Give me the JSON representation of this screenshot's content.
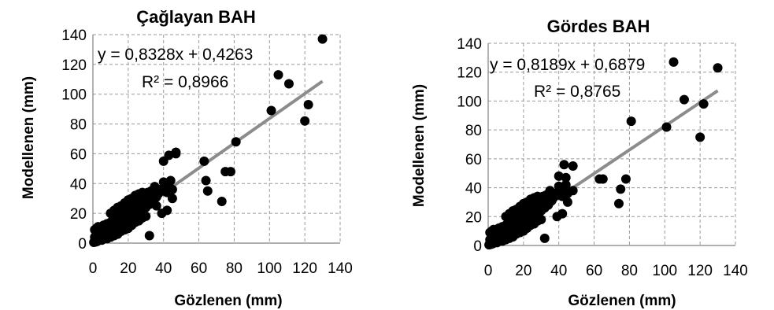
{
  "chart_data": [
    {
      "type": "scatter",
      "title": "Çağlayan BAH",
      "xlabel": "Gözlenen (mm)",
      "ylabel": "Modellenen (mm)",
      "xlim": [
        0,
        140
      ],
      "ylim": [
        0,
        140
      ],
      "xticks": [
        "0",
        "20",
        "40",
        "60",
        "80",
        "100",
        "120",
        "140"
      ],
      "yticks": [
        "0",
        "20",
        "40",
        "60",
        "80",
        "100",
        "120",
        "140"
      ],
      "grid": true,
      "marker_color": "#000000",
      "trendline_color": "#8c8c8c",
      "trendline": {
        "slope": 0.8328,
        "intercept": 0.4263
      },
      "equation": "y = 0,8328x + 0,4263",
      "r2": "R² = 0,8966",
      "points": [
        [
          0.5,
          0.5
        ],
        [
          1,
          1.5
        ],
        [
          1.5,
          0.8
        ],
        [
          2,
          2.5
        ],
        [
          2.5,
          1.2
        ],
        [
          3,
          3
        ],
        [
          3.5,
          2
        ],
        [
          4,
          4.5
        ],
        [
          4.5,
          3
        ],
        [
          5,
          5
        ],
        [
          1,
          4
        ],
        [
          2,
          6
        ],
        [
          3,
          8
        ],
        [
          1,
          9
        ],
        [
          2,
          10
        ],
        [
          3,
          11
        ],
        [
          4,
          7
        ],
        [
          5,
          9
        ],
        [
          6,
          5
        ],
        [
          6,
          12
        ],
        [
          7,
          6
        ],
        [
          7,
          10
        ],
        [
          8,
          7
        ],
        [
          8,
          13
        ],
        [
          9,
          8
        ],
        [
          9,
          11
        ],
        [
          10,
          9
        ],
        [
          10,
          14
        ],
        [
          11,
          10
        ],
        [
          11,
          15
        ],
        [
          12,
          11
        ],
        [
          12,
          8
        ],
        [
          13,
          12
        ],
        [
          13,
          16
        ],
        [
          14,
          10
        ],
        [
          14,
          13
        ],
        [
          15,
          14
        ],
        [
          15,
          18
        ],
        [
          16,
          12
        ],
        [
          16,
          15
        ],
        [
          17,
          16
        ],
        [
          17,
          20
        ],
        [
          18,
          14
        ],
        [
          18,
          17
        ],
        [
          19,
          18
        ],
        [
          19,
          22
        ],
        [
          20,
          16
        ],
        [
          20,
          20
        ],
        [
          21,
          19
        ],
        [
          21,
          24
        ],
        [
          22,
          17
        ],
        [
          22,
          21
        ],
        [
          23,
          20
        ],
        [
          23,
          26
        ],
        [
          24,
          18
        ],
        [
          24,
          22
        ],
        [
          25,
          21
        ],
        [
          25,
          28
        ],
        [
          26,
          20
        ],
        [
          26,
          24
        ],
        [
          27,
          23
        ],
        [
          27,
          30
        ],
        [
          28,
          22
        ],
        [
          28,
          26
        ],
        [
          29,
          25
        ],
        [
          29,
          32
        ],
        [
          30,
          24
        ],
        [
          30,
          28
        ],
        [
          31,
          27
        ],
        [
          31,
          34
        ],
        [
          32,
          26
        ],
        [
          32,
          5
        ],
        [
          33,
          29
        ],
        [
          33,
          35
        ],
        [
          34,
          28
        ],
        [
          34,
          32
        ],
        [
          35,
          30
        ],
        [
          35,
          38
        ],
        [
          36,
          31
        ],
        [
          36,
          25
        ],
        [
          37,
          33
        ],
        [
          38,
          36
        ],
        [
          39,
          20
        ],
        [
          40,
          35
        ],
        [
          40,
          41
        ],
        [
          41,
          37
        ],
        [
          42,
          22
        ],
        [
          42,
          34
        ],
        [
          43,
          39
        ],
        [
          44,
          42
        ],
        [
          45,
          36
        ],
        [
          45,
          30
        ],
        [
          5,
          2
        ],
        [
          6,
          3
        ],
        [
          7,
          4
        ],
        [
          8,
          3
        ],
        [
          9,
          5
        ],
        [
          10,
          4
        ],
        [
          12,
          5
        ],
        [
          14,
          6
        ],
        [
          16,
          8
        ],
        [
          18,
          9
        ],
        [
          20,
          10
        ],
        [
          22,
          12
        ],
        [
          24,
          14
        ],
        [
          26,
          15
        ],
        [
          28,
          17
        ],
        [
          30,
          18
        ],
        [
          10,
          20
        ],
        [
          12,
          22
        ],
        [
          14,
          24
        ],
        [
          16,
          25
        ],
        [
          18,
          27
        ],
        [
          20,
          29
        ],
        [
          22,
          30
        ],
        [
          24,
          32
        ],
        [
          26,
          33
        ],
        [
          28,
          34
        ],
        [
          40,
          55
        ],
        [
          43,
          59
        ],
        [
          47,
          61
        ],
        [
          47,
          60
        ],
        [
          63,
          55
        ],
        [
          64,
          42
        ],
        [
          65,
          35
        ],
        [
          73,
          28
        ],
        [
          75,
          48
        ],
        [
          78,
          48
        ],
        [
          81,
          68
        ],
        [
          101,
          89
        ],
        [
          105,
          113
        ],
        [
          111,
          107
        ],
        [
          120,
          82
        ],
        [
          122,
          93
        ],
        [
          130,
          137
        ]
      ]
    },
    {
      "type": "scatter",
      "title": "Gördes BAH",
      "xlabel": "Gözlenen (mm)",
      "ylabel": "Modellenen (mm)",
      "xlim": [
        0,
        140
      ],
      "ylim": [
        0,
        140
      ],
      "xticks": [
        "0",
        "20",
        "40",
        "60",
        "80",
        "100",
        "120",
        "140"
      ],
      "yticks": [
        "0",
        "20",
        "40",
        "60",
        "80",
        "100",
        "120",
        "140"
      ],
      "grid": true,
      "marker_color": "#000000",
      "trendline_color": "#8c8c8c",
      "trendline": {
        "slope": 0.8189,
        "intercept": 0.6879
      },
      "equation": "y = 0,8189x + 0,6879",
      "r2": "R² = 0,8765",
      "points": [
        [
          0.5,
          0.5
        ],
        [
          1,
          1.5
        ],
        [
          1.5,
          0.8
        ],
        [
          2,
          2.5
        ],
        [
          2.5,
          1.2
        ],
        [
          3,
          3
        ],
        [
          3.5,
          2
        ],
        [
          4,
          4.5
        ],
        [
          4.5,
          3
        ],
        [
          5,
          5
        ],
        [
          1,
          4
        ],
        [
          2,
          6
        ],
        [
          3,
          8
        ],
        [
          1,
          9
        ],
        [
          2,
          10
        ],
        [
          3,
          11
        ],
        [
          4,
          7
        ],
        [
          5,
          9
        ],
        [
          6,
          5
        ],
        [
          6,
          12
        ],
        [
          7,
          6
        ],
        [
          7,
          10
        ],
        [
          8,
          7
        ],
        [
          8,
          13
        ],
        [
          9,
          8
        ],
        [
          9,
          11
        ],
        [
          10,
          9
        ],
        [
          10,
          14
        ],
        [
          11,
          10
        ],
        [
          11,
          15
        ],
        [
          12,
          11
        ],
        [
          12,
          8
        ],
        [
          13,
          12
        ],
        [
          13,
          16
        ],
        [
          14,
          10
        ],
        [
          14,
          13
        ],
        [
          15,
          14
        ],
        [
          15,
          18
        ],
        [
          16,
          12
        ],
        [
          16,
          15
        ],
        [
          17,
          16
        ],
        [
          17,
          20
        ],
        [
          18,
          14
        ],
        [
          18,
          17
        ],
        [
          19,
          18
        ],
        [
          19,
          22
        ],
        [
          20,
          16
        ],
        [
          20,
          20
        ],
        [
          21,
          19
        ],
        [
          21,
          24
        ],
        [
          22,
          17
        ],
        [
          22,
          21
        ],
        [
          23,
          20
        ],
        [
          23,
          26
        ],
        [
          24,
          18
        ],
        [
          24,
          22
        ],
        [
          25,
          21
        ],
        [
          25,
          28
        ],
        [
          26,
          20
        ],
        [
          26,
          24
        ],
        [
          27,
          23
        ],
        [
          27,
          30
        ],
        [
          28,
          22
        ],
        [
          28,
          26
        ],
        [
          29,
          25
        ],
        [
          29,
          32
        ],
        [
          30,
          24
        ],
        [
          30,
          28
        ],
        [
          31,
          27
        ],
        [
          31,
          34
        ],
        [
          32,
          26
        ],
        [
          32,
          5
        ],
        [
          33,
          29
        ],
        [
          33,
          35
        ],
        [
          34,
          28
        ],
        [
          34,
          32
        ],
        [
          35,
          30
        ],
        [
          35,
          38
        ],
        [
          36,
          31
        ],
        [
          37,
          33
        ],
        [
          38,
          36
        ],
        [
          39,
          20
        ],
        [
          40,
          35
        ],
        [
          40,
          41
        ],
        [
          41,
          37
        ],
        [
          42,
          22
        ],
        [
          42,
          34
        ],
        [
          43,
          39
        ],
        [
          44,
          42
        ],
        [
          45,
          36
        ],
        [
          45,
          30
        ],
        [
          5,
          2
        ],
        [
          6,
          3
        ],
        [
          7,
          4
        ],
        [
          8,
          3
        ],
        [
          9,
          5
        ],
        [
          10,
          4
        ],
        [
          12,
          5
        ],
        [
          14,
          6
        ],
        [
          16,
          8
        ],
        [
          18,
          9
        ],
        [
          20,
          10
        ],
        [
          22,
          12
        ],
        [
          24,
          14
        ],
        [
          26,
          15
        ],
        [
          28,
          17
        ],
        [
          30,
          18
        ],
        [
          10,
          20
        ],
        [
          12,
          22
        ],
        [
          14,
          24
        ],
        [
          16,
          25
        ],
        [
          18,
          27
        ],
        [
          20,
          29
        ],
        [
          22,
          30
        ],
        [
          24,
          32
        ],
        [
          26,
          33
        ],
        [
          28,
          34
        ],
        [
          40,
          48
        ],
        [
          43,
          56
        ],
        [
          44,
          47
        ],
        [
          48,
          55
        ],
        [
          48,
          38
        ],
        [
          63,
          46
        ],
        [
          65,
          46
        ],
        [
          74,
          29
        ],
        [
          75,
          39
        ],
        [
          78,
          46
        ],
        [
          81,
          86
        ],
        [
          101,
          82
        ],
        [
          105,
          127
        ],
        [
          111,
          101
        ],
        [
          120,
          75
        ],
        [
          122,
          98
        ],
        [
          130,
          123
        ]
      ]
    }
  ]
}
